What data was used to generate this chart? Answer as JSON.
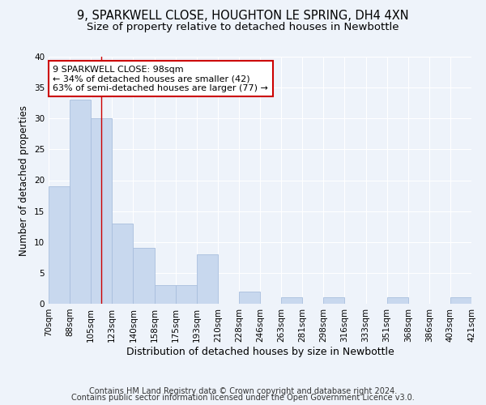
{
  "title": "9, SPARKWELL CLOSE, HOUGHTON LE SPRING, DH4 4XN",
  "subtitle": "Size of property relative to detached houses in Newbottle",
  "xlabel": "Distribution of detached houses by size in Newbottle",
  "ylabel": "Number of detached properties",
  "bin_labels": [
    "70sqm",
    "88sqm",
    "105sqm",
    "123sqm",
    "140sqm",
    "158sqm",
    "175sqm",
    "193sqm",
    "210sqm",
    "228sqm",
    "246sqm",
    "263sqm",
    "281sqm",
    "298sqm",
    "316sqm",
    "333sqm",
    "351sqm",
    "368sqm",
    "386sqm",
    "403sqm",
    "421sqm"
  ],
  "bar_heights": [
    19,
    33,
    30,
    13,
    9,
    3,
    3,
    8,
    0,
    2,
    0,
    1,
    0,
    1,
    0,
    0,
    1,
    0,
    0,
    1
  ],
  "bar_color": "#c8d8ee",
  "bar_edgecolor": "#a8bedd",
  "bar_width": 1.0,
  "ylim": [
    0,
    40
  ],
  "yticks": [
    0,
    5,
    10,
    15,
    20,
    25,
    30,
    35,
    40
  ],
  "red_line_x": 2.0,
  "annotation_text": "9 SPARKWELL CLOSE: 98sqm\n← 34% of detached houses are smaller (42)\n63% of semi-detached houses are larger (77) →",
  "annotation_box_facecolor": "#ffffff",
  "annotation_box_edgecolor": "#cc0000",
  "footer_line1": "Contains HM Land Registry data © Crown copyright and database right 2024.",
  "footer_line2": "Contains public sector information licensed under the Open Government Licence v3.0.",
  "bg_color": "#eef3fa",
  "plot_bg_color": "#eef3fa",
  "grid_color": "#ffffff",
  "title_fontsize": 10.5,
  "subtitle_fontsize": 9.5,
  "xlabel_fontsize": 9,
  "ylabel_fontsize": 8.5,
  "tick_fontsize": 7.5,
  "annotation_fontsize": 8,
  "footer_fontsize": 7
}
